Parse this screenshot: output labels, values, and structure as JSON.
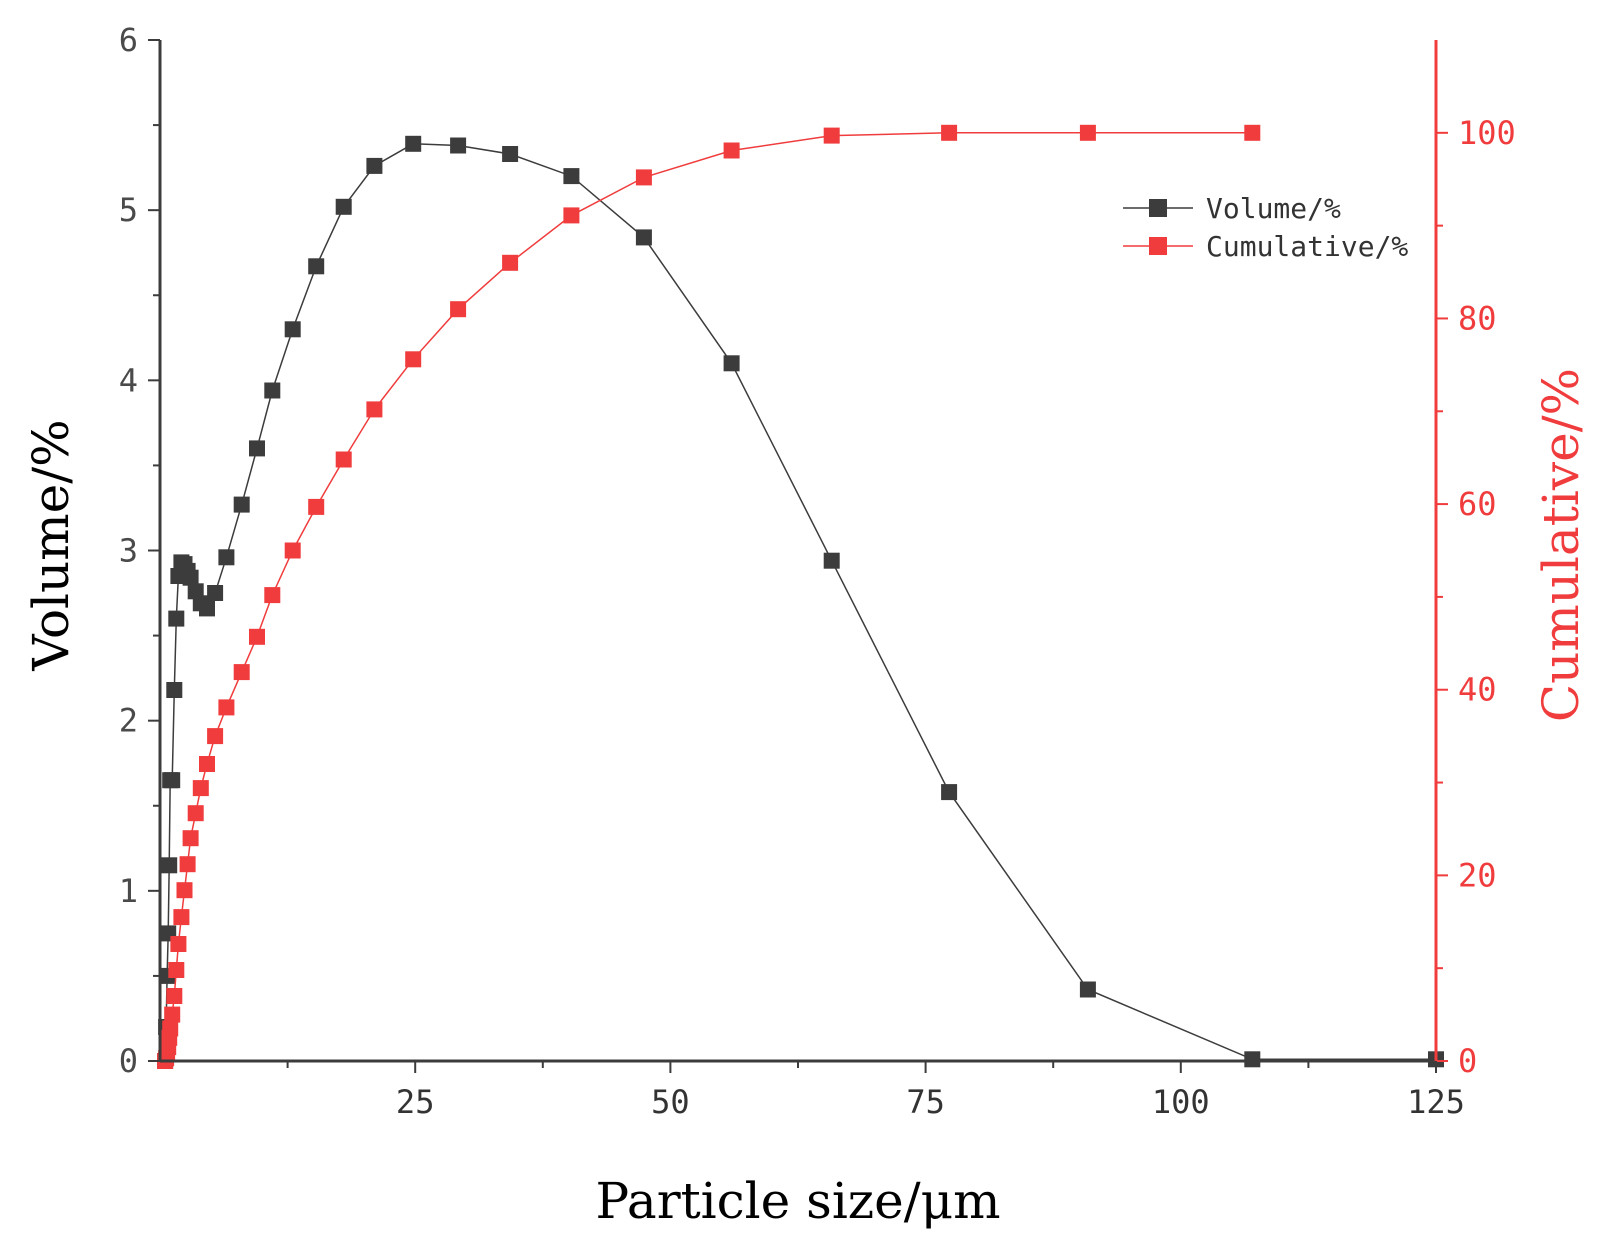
{
  "chart_data": {
    "type": "line",
    "title": "",
    "xlabel": "Particle size/μm",
    "ylabel": "Volume/%",
    "y2label": "Cumulative/%",
    "xlim": [
      0,
      125
    ],
    "ylim": [
      0,
      6
    ],
    "y2lim": [
      0,
      110
    ],
    "xticks": [
      25,
      50,
      75,
      100,
      125
    ],
    "yticks": [
      0,
      1,
      2,
      3,
      4,
      5,
      6
    ],
    "y2ticks": [
      0,
      20,
      40,
      60,
      80,
      100
    ],
    "legend_position": "top-right",
    "colors": {
      "volume": "#3c3c3c",
      "cumulative": "#f03c3c",
      "right_axis": "#f03c3c"
    },
    "series": [
      {
        "name": "Volume/%",
        "axis": "left",
        "x": [
          0.5,
          0.6,
          0.7,
          0.8,
          0.9,
          1.0,
          1.2,
          1.4,
          1.6,
          1.8,
          2.1,
          2.4,
          2.7,
          3.0,
          3.5,
          4.0,
          4.6,
          5.4,
          6.5,
          8.0,
          9.5,
          11.0,
          13.0,
          15.3,
          18.0,
          21.0,
          24.8,
          29.2,
          34.3,
          40.3,
          47.4,
          56.0,
          65.8,
          77.3,
          90.9,
          107.0,
          125.0
        ],
        "y": [
          0.0,
          0.2,
          0.5,
          0.75,
          1.15,
          1.65,
          1.65,
          2.18,
          2.6,
          2.85,
          2.93,
          2.92,
          2.88,
          2.84,
          2.76,
          2.69,
          2.66,
          2.75,
          2.96,
          3.27,
          3.6,
          3.94,
          4.3,
          4.67,
          5.02,
          5.26,
          5.39,
          5.38,
          5.33,
          5.2,
          4.84,
          4.1,
          2.94,
          1.58,
          0.42,
          0.01,
          0.01
        ]
      },
      {
        "name": "Cumulative/%",
        "axis": "right",
        "x": [
          0.5,
          0.6,
          0.7,
          0.8,
          0.9,
          1.0,
          1.2,
          1.4,
          1.6,
          1.8,
          2.1,
          2.4,
          2.7,
          3.0,
          3.5,
          4.0,
          4.6,
          5.4,
          6.5,
          8.0,
          9.5,
          11.0,
          13.0,
          15.3,
          18.0,
          21.0,
          24.8,
          29.2,
          34.3,
          40.3,
          47.4,
          56.0,
          65.8,
          77.3,
          90.9,
          107.0
        ],
        "y": [
          0.0,
          0.3,
          0.8,
          1.5,
          2.5,
          3.5,
          5.0,
          7.0,
          9.8,
          12.6,
          15.5,
          18.4,
          21.2,
          24.0,
          26.7,
          29.4,
          32.0,
          35.0,
          38.1,
          41.9,
          45.7,
          50.2,
          55.0,
          59.7,
          64.8,
          70.2,
          75.6,
          81.0,
          86.0,
          91.1,
          95.2,
          98.1,
          99.7,
          100.0,
          100.0,
          100.0
        ]
      }
    ]
  }
}
